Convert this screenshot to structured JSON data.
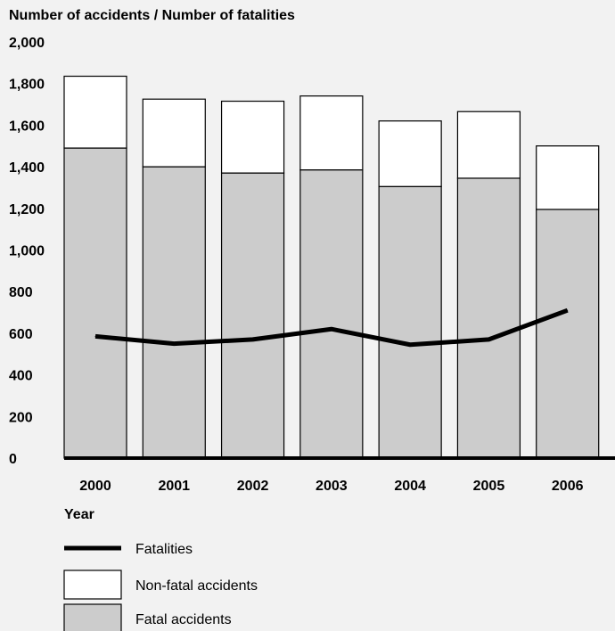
{
  "chart_data": {
    "type": "bar",
    "stacked": true,
    "title": "Number of accidents / Number of fatalities",
    "xlabel": "Year",
    "ylabel": "",
    "ylim": [
      0,
      2000
    ],
    "yticks": [
      "0",
      "200",
      "400",
      "600",
      "800",
      "1,000",
      "1,200",
      "1,400",
      "1,600",
      "1,800",
      "2,000"
    ],
    "categories": [
      "2000",
      "2001",
      "2002",
      "2003",
      "2004",
      "2005",
      "2006"
    ],
    "series": [
      {
        "name": "Fatal accidents",
        "kind": "bar",
        "color": "#cccccc",
        "values": [
          1490,
          1400,
          1370,
          1385,
          1305,
          1345,
          1195
        ]
      },
      {
        "name": "Non-fatal accidents",
        "kind": "bar",
        "color": "#ffffff",
        "values": [
          345,
          325,
          345,
          355,
          315,
          320,
          305
        ]
      },
      {
        "name": "Fatalities",
        "kind": "line",
        "color": "#000000",
        "values": [
          585,
          550,
          570,
          620,
          545,
          570,
          710
        ]
      }
    ],
    "legend": [
      {
        "label": "Fatalities",
        "symbol": "line"
      },
      {
        "label": "Non-fatal accidents",
        "symbol": "box-white"
      },
      {
        "label": "Fatal accidents",
        "symbol": "box-grey"
      }
    ],
    "legend_position": "bottom-left",
    "grid": false
  }
}
